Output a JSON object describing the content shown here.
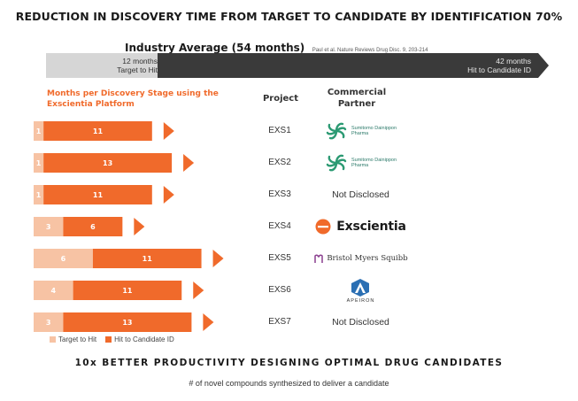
{
  "title": "REDUCTION IN DISCOVERY TIME FROM TARGET TO CANDIDATE BY IDENTIFICATION 70%",
  "industry": {
    "label": "Industry Average (54 months)",
    "citation": "Paul et al. Nature Reviews Drug Disc. 9, 203-214",
    "segments": [
      {
        "text": "12 months\nTarget to Hit",
        "months": 12,
        "color": "#d6d6d6"
      },
      {
        "text": "42 months\nHit to Candidate ID",
        "months": 42,
        "color": "#3a3a3a"
      }
    ]
  },
  "chart_data": {
    "type": "bar",
    "orientation": "horizontal",
    "stacked": true,
    "title": "Months per Discovery Stage using the\nExscientia Platform",
    "categories": [
      "EXS1",
      "EXS2",
      "EXS3",
      "EXS4",
      "EXS5",
      "EXS6",
      "EXS7"
    ],
    "series": [
      {
        "name": "Target to Hit",
        "color": "#f7c3a4",
        "values": [
          1,
          1,
          1,
          3,
          6,
          4,
          3
        ]
      },
      {
        "name": "Hit to Candidate ID",
        "color": "#f06a2b",
        "values": [
          11,
          13,
          11,
          6,
          11,
          11,
          13
        ]
      }
    ],
    "legend_position": "bottom-left"
  },
  "table": {
    "project_header": "Project",
    "partner_header": "Commercial\nPartner",
    "partners": [
      {
        "type": "sumitomo",
        "name": "Sumitomo Dainippon\nPharma"
      },
      {
        "type": "sumitomo",
        "name": "Sumitomo Dainippon\nPharma"
      },
      {
        "type": "text",
        "name": "Not Disclosed"
      },
      {
        "type": "exscientia",
        "name": "Exscientia"
      },
      {
        "type": "bms",
        "name": "Bristol Myers Squibb"
      },
      {
        "type": "aperion",
        "name": "APEIRON"
      },
      {
        "type": "text",
        "name": "Not Disclosed"
      }
    ]
  },
  "footer": {
    "headline": "10x BETTER PRODUCTIVITY DESIGNING OPTIMAL DRUG CANDIDATES",
    "subline": "# of novel compounds synthesized to deliver a candidate"
  }
}
